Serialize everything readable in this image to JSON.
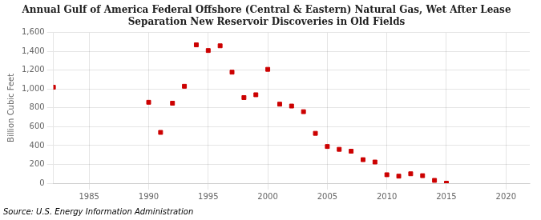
{
  "chart_data": {
    "type": "scatter",
    "title": "Annual Gulf of America Federal Offshore (Central & Eastern) Natural Gas, Wet After Lease\nSeparation New Reservoir Discoveries in Old Fields",
    "ylabel": "Billion Cubic Feet",
    "annotation": "Source: U.S. Energy Information Administration",
    "x": [
      1982,
      1990,
      1991,
      1992,
      1993,
      1994,
      1995,
      1996,
      1997,
      1998,
      1999,
      2000,
      2001,
      2002,
      2003,
      2004,
      2005,
      2006,
      2007,
      2008,
      2009,
      2010,
      2011,
      2012,
      2013,
      2014,
      2015
    ],
    "values": [
      1020,
      860,
      540,
      850,
      1030,
      1470,
      1410,
      1460,
      1180,
      910,
      940,
      1210,
      840,
      820,
      760,
      530,
      390,
      360,
      340,
      250,
      225,
      90,
      75,
      100,
      80,
      30,
      0
    ],
    "color": "#cc0000",
    "marker": "square",
    "xlim": [
      1982,
      2022
    ],
    "xticks": [
      1985,
      1990,
      1995,
      2000,
      2005,
      2010,
      2015,
      2020
    ],
    "ylim": [
      0,
      1600
    ],
    "yticks": [
      0,
      200,
      400,
      600,
      800,
      {
        "value": 1000,
        "label": "1,000"
      },
      {
        "value": 1200,
        "label": "1,200"
      },
      {
        "value": 1400,
        "label": "1,400"
      },
      {
        "value": 1600,
        "label": "1,600"
      }
    ],
    "grid": true
  }
}
